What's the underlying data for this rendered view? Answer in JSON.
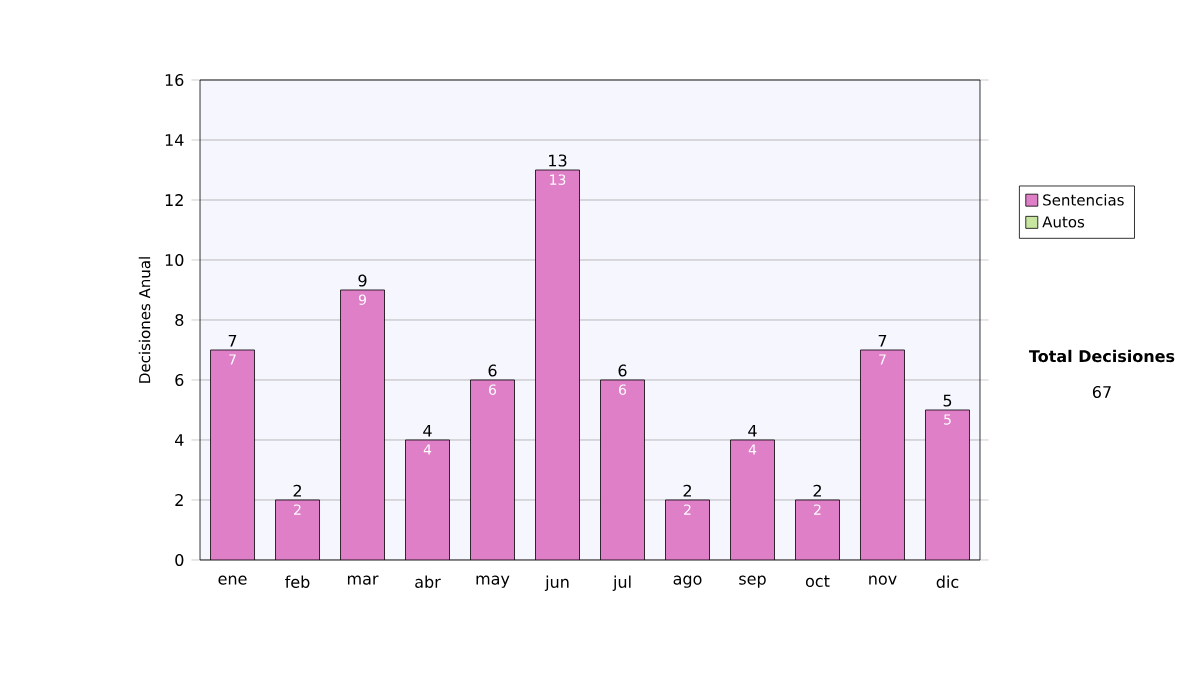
{
  "chart_data": {
    "type": "bar",
    "stacked": true,
    "ylabel": "Decisiones Anual",
    "categories": [
      "ene",
      "feb",
      "mar",
      "abr",
      "may",
      "jun",
      "jul",
      "ago",
      "sep",
      "oct",
      "nov",
      "dic"
    ],
    "series": [
      {
        "name": "Sentencias",
        "color": "#df7fc8",
        "values": [
          7,
          2,
          9,
          4,
          6,
          13,
          6,
          2,
          4,
          2,
          7,
          5
        ],
        "value_labels": [
          "7",
          "2",
          "9",
          "4",
          "6",
          "13",
          "6",
          "2",
          "4",
          "2",
          "7",
          "5"
        ]
      },
      {
        "name": "Autos",
        "color": "#c8e6a0",
        "values": [
          0,
          0,
          0,
          0,
          0,
          0,
          0,
          0,
          0,
          0,
          0,
          0
        ]
      }
    ],
    "ylim": [
      0,
      16
    ],
    "yticks": [
      0,
      2,
      4,
      6,
      8,
      10,
      12,
      14,
      16
    ],
    "grid": "y",
    "legend": "right",
    "totals": [
      "7",
      "2",
      "9",
      "4",
      "6",
      "13",
      "6",
      "2",
      "4",
      "2",
      "7",
      "5"
    ],
    "annotations": [
      "Total Decisiones",
      "67"
    ]
  }
}
